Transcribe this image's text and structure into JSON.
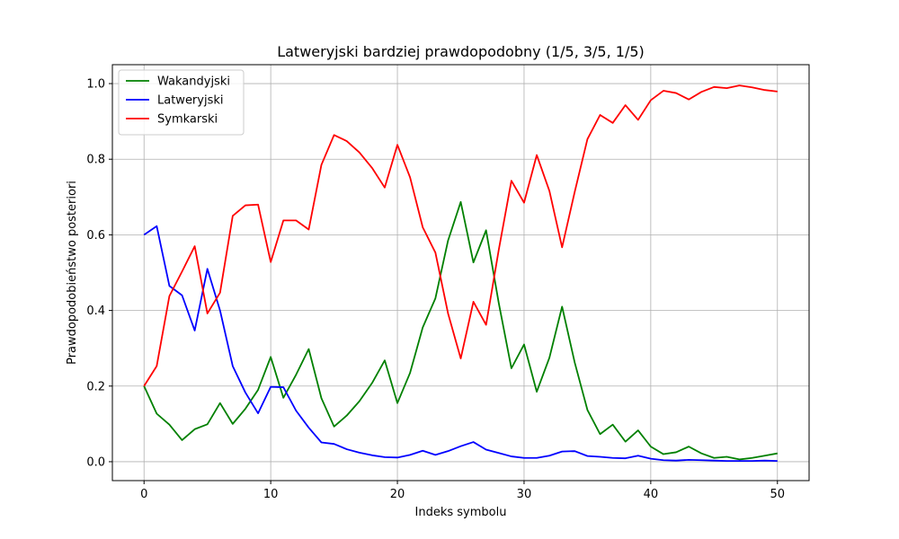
{
  "chart_data": {
    "type": "line",
    "title": "Latweryjski bardziej prawdopodobny (1/5, 3/5, 1/5)",
    "xlabel": "Indeks symbolu",
    "ylabel": "Prawdopodobieństwo posteriori",
    "xlim": [
      -2.5,
      52.5
    ],
    "ylim": [
      -0.05,
      1.05
    ],
    "xticks": [
      0,
      10,
      20,
      30,
      40,
      50
    ],
    "yticks": [
      0.0,
      0.2,
      0.4,
      0.6,
      0.8,
      1.0
    ],
    "xtick_labels": [
      "0",
      "10",
      "20",
      "30",
      "40",
      "50"
    ],
    "ytick_labels": [
      "0.0",
      "0.2",
      "0.4",
      "0.6",
      "0.8",
      "1.0"
    ],
    "grid": true,
    "legend_position": "top-left",
    "x": [
      0,
      1,
      2,
      3,
      4,
      5,
      6,
      7,
      8,
      9,
      10,
      11,
      12,
      13,
      14,
      15,
      16,
      17,
      18,
      19,
      20,
      21,
      22,
      23,
      24,
      25,
      26,
      27,
      28,
      29,
      30,
      31,
      32,
      33,
      34,
      35,
      36,
      37,
      38,
      39,
      40,
      41,
      42,
      43,
      44,
      45,
      46,
      47,
      48,
      49,
      50
    ],
    "series": [
      {
        "name": "Wakandyjski",
        "color": "#008000",
        "values": [
          0.2,
          0.127,
          0.098,
          0.057,
          0.086,
          0.099,
          0.155,
          0.1,
          0.14,
          0.19,
          0.277,
          0.169,
          0.23,
          0.298,
          0.168,
          0.093,
          0.122,
          0.16,
          0.208,
          0.268,
          0.155,
          0.235,
          0.355,
          0.432,
          0.585,
          0.687,
          0.527,
          0.612,
          0.42,
          0.247,
          0.31,
          0.185,
          0.275,
          0.41,
          0.262,
          0.137,
          0.073,
          0.098,
          0.053,
          0.083,
          0.04,
          0.02,
          0.025,
          0.04,
          0.022,
          0.01,
          0.013,
          0.006,
          0.01,
          0.016,
          0.022
        ]
      },
      {
        "name": "Latweryjski",
        "color": "#0000ff",
        "values": [
          0.6,
          0.623,
          0.465,
          0.44,
          0.347,
          0.51,
          0.4,
          0.253,
          0.183,
          0.128,
          0.198,
          0.197,
          0.135,
          0.09,
          0.051,
          0.047,
          0.033,
          0.024,
          0.017,
          0.012,
          0.011,
          0.018,
          0.029,
          0.018,
          0.028,
          0.041,
          0.052,
          0.032,
          0.023,
          0.014,
          0.01,
          0.01,
          0.016,
          0.027,
          0.028,
          0.015,
          0.013,
          0.01,
          0.009,
          0.016,
          0.008,
          0.004,
          0.003,
          0.005,
          0.004,
          0.003,
          0.002,
          0.002,
          0.002,
          0.003,
          0.002
        ]
      },
      {
        "name": "Symkarski",
        "color": "#ff0000",
        "values": [
          0.2,
          0.253,
          0.438,
          0.503,
          0.57,
          0.392,
          0.447,
          0.65,
          0.678,
          0.68,
          0.528,
          0.638,
          0.638,
          0.614,
          0.785,
          0.864,
          0.848,
          0.818,
          0.777,
          0.725,
          0.838,
          0.752,
          0.62,
          0.553,
          0.392,
          0.273,
          0.423,
          0.362,
          0.56,
          0.743,
          0.685,
          0.811,
          0.716,
          0.567,
          0.714,
          0.853,
          0.917,
          0.896,
          0.943,
          0.904,
          0.956,
          0.981,
          0.975,
          0.958,
          0.978,
          0.991,
          0.988,
          0.995,
          0.99,
          0.983,
          0.979
        ]
      }
    ]
  }
}
